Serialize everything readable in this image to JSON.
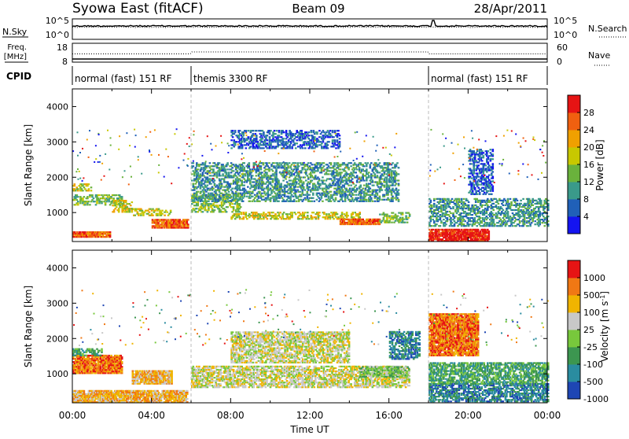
{
  "header": {
    "title_left": "Syowa East (fitACF)",
    "title_center": "Beam 09",
    "title_right": "28/Apr/2011"
  },
  "strips": {
    "nsky_label": "N.Sky",
    "nsky_top_tick": "10^5",
    "nsky_bottom_tick": "10^0",
    "nsearch_label": "N.Search",
    "nsearch_top_tick": "10^5",
    "nsearch_bottom_tick": "10^0",
    "freq_label_line1": "Freq.",
    "freq_label_line2": "[MHz]",
    "freq_top_tick": "18",
    "freq_bottom_tick": "8",
    "nave_label": "Nave",
    "nave_top_tick": "60",
    "nave_bottom_tick": "0",
    "cpid_label": "CPID",
    "modes": [
      {
        "label": "normal (fast) 151 RF",
        "start_hour": 0,
        "end_hour": 6
      },
      {
        "label": "themis 3300 RF",
        "start_hour": 6,
        "end_hour": 18
      },
      {
        "label": "normal (fast) 151 RF",
        "start_hour": 18,
        "end_hour": 24
      }
    ]
  },
  "chart_data": [
    {
      "type": "heatmap",
      "name": "power",
      "ylabel": "Slant Range [km]",
      "ylim": [
        180,
        4500
      ],
      "y_ticks": [
        "1000",
        "2000",
        "3000",
        "4000"
      ],
      "x_ticks": [
        "00:00",
        "04:00",
        "08:00",
        "12:00",
        "16:00",
        "20:00",
        "00:00"
      ],
      "xlim_hours": [
        0,
        24
      ],
      "colorbar": {
        "label": "Power [dB]",
        "ticks": [
          "4",
          "8",
          "12",
          "16",
          "20",
          "24",
          "28"
        ],
        "range": [
          0,
          30
        ],
        "colors": [
          "#1414f0",
          "#2060b8",
          "#3a9a8a",
          "#6ab23c",
          "#c8c800",
          "#f0a000",
          "#f06010",
          "#e61414"
        ]
      },
      "features": [
        {
          "t": [
            0.0,
            1.9
          ],
          "r": [
            290,
            430
          ],
          "level": 6
        },
        {
          "t": [
            0.0,
            2.5
          ],
          "r": [
            1200,
            1500
          ],
          "level": 3
        },
        {
          "t": [
            0.0,
            1.0
          ],
          "r": [
            1600,
            1800
          ],
          "level": 4
        },
        {
          "t": [
            2.0,
            3.0
          ],
          "r": [
            1000,
            1350
          ],
          "level": 4
        },
        {
          "t": [
            3.0,
            5.0
          ],
          "r": [
            900,
            1100
          ],
          "level": 4
        },
        {
          "t": [
            4.0,
            5.8
          ],
          "r": [
            550,
            800
          ],
          "level": 6
        },
        {
          "t": [
            6.0,
            8.5
          ],
          "r": [
            1000,
            1500
          ],
          "level": 3
        },
        {
          "t": [
            8.0,
            14.5
          ],
          "r": [
            800,
            1000
          ],
          "level": 4
        },
        {
          "t": [
            13.5,
            15.5
          ],
          "r": [
            650,
            800
          ],
          "level": 6
        },
        {
          "t": [
            6.0,
            16.5
          ],
          "r": [
            1300,
            2400
          ],
          "level": 2
        },
        {
          "t": [
            8.0,
            13.5
          ],
          "r": [
            2800,
            3300
          ],
          "level": 1
        },
        {
          "t": [
            15.5,
            17.0
          ],
          "r": [
            700,
            1000
          ],
          "level": 3
        },
        {
          "t": [
            18.0,
            21.0
          ],
          "r": [
            180,
            500
          ],
          "level": 7
        },
        {
          "t": [
            18.0,
            24.0
          ],
          "r": [
            600,
            1400
          ],
          "level": 2
        },
        {
          "t": [
            20.0,
            21.2
          ],
          "r": [
            1500,
            2800
          ],
          "level": 1
        }
      ]
    },
    {
      "type": "heatmap",
      "name": "velocity",
      "ylabel": "Slant Range [km]",
      "ylim": [
        180,
        4500
      ],
      "y_ticks": [
        "1000",
        "2000",
        "3000",
        "4000"
      ],
      "x_ticks": [
        "00:00",
        "04:00",
        "08:00",
        "12:00",
        "16:00",
        "20:00",
        "00:00"
      ],
      "xlim_hours": [
        0,
        24
      ],
      "xlabel": "Time UT",
      "colorbar": {
        "label": "Velocity [m s-1]",
        "ticks": [
          "1000",
          "500",
          "100",
          "25",
          "-25",
          "-100",
          "-500",
          "-1000"
        ],
        "colors": [
          "#1e46b4",
          "#2a8ca0",
          "#3c9650",
          "#78c83c",
          "#c8c8c8",
          "#f0b400",
          "#f07814",
          "#e61414"
        ]
      },
      "features": [
        {
          "t": [
            0.0,
            5.8
          ],
          "r": [
            180,
            500
          ],
          "level": 5
        },
        {
          "t": [
            0.0,
            2.5
          ],
          "r": [
            1000,
            1500
          ],
          "level": 6
        },
        {
          "t": [
            0.0,
            1.5
          ],
          "r": [
            1500,
            1700
          ],
          "level": 2
        },
        {
          "t": [
            3.0,
            5.0
          ],
          "r": [
            700,
            1100
          ],
          "level": 5
        },
        {
          "t": [
            6.0,
            17.0
          ],
          "r": [
            600,
            1200
          ],
          "level": 4
        },
        {
          "t": [
            8.0,
            14.0
          ],
          "r": [
            1300,
            2200
          ],
          "level": 4
        },
        {
          "t": [
            14.5,
            17.0
          ],
          "r": [
            900,
            1200
          ],
          "level": 3
        },
        {
          "t": [
            16.0,
            17.5
          ],
          "r": [
            1400,
            2200
          ],
          "level": 1
        },
        {
          "t": [
            18.0,
            24.0
          ],
          "r": [
            200,
            700
          ],
          "level": 1
        },
        {
          "t": [
            18.0,
            24.0
          ],
          "r": [
            700,
            1300
          ],
          "level": 2
        },
        {
          "t": [
            18.0,
            20.5
          ],
          "r": [
            1500,
            2700
          ],
          "level": 6
        }
      ]
    }
  ]
}
